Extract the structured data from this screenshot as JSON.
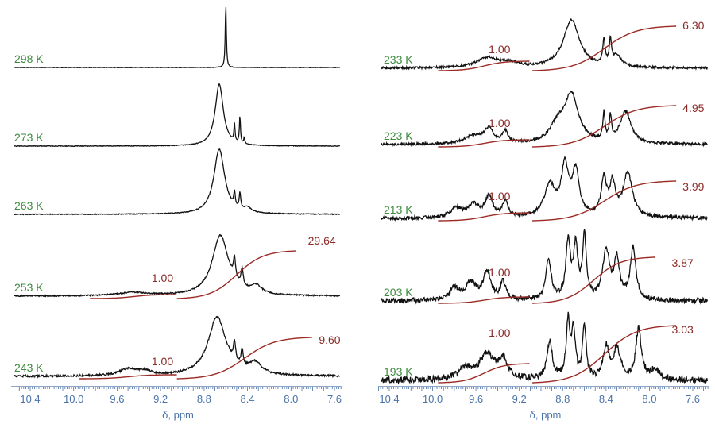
{
  "colors": {
    "spectrum": "#111111",
    "integral": "#9b2a24",
    "temp_label": "#3e8a3e",
    "integral_label": "#8b2a26",
    "axis": "#4a72a8"
  },
  "chart_data": [
    {
      "type": "line",
      "xlabel": "δ, ppm",
      "x_ticks": [
        "10.4",
        "10.0",
        "9.6",
        "9.2",
        "8.8",
        "8.4",
        "8.0",
        "7.6"
      ],
      "xlim": [
        10.5,
        7.5
      ],
      "x_reversed": true,
      "spectra": [
        {
          "temperature": "298 K",
          "integrals": []
        },
        {
          "temperature": "273 K",
          "integrals": []
        },
        {
          "temperature": "263 K",
          "integrals": []
        },
        {
          "temperature": "253 K",
          "integrals": [
            "1.00",
            "29.64"
          ]
        },
        {
          "temperature": "243 K",
          "integrals": [
            "1.00",
            "9.60"
          ]
        }
      ]
    },
    {
      "type": "line",
      "xlabel": "δ, ppm",
      "x_ticks": [
        "10.4",
        "10.0",
        "9.6",
        "9.2",
        "8.8",
        "8.4",
        "8.0",
        "7.6"
      ],
      "xlim": [
        10.5,
        7.5
      ],
      "x_reversed": true,
      "spectra": [
        {
          "temperature": "233 K",
          "integrals": [
            "1.00",
            "6.30"
          ]
        },
        {
          "temperature": "223 K",
          "integrals": [
            "1.00",
            "4.95"
          ]
        },
        {
          "temperature": "213 K",
          "integrals": [
            "1.00",
            "3.99"
          ]
        },
        {
          "temperature": "203 K",
          "integrals": [
            "1.00",
            "3.87"
          ]
        },
        {
          "temperature": "193 K",
          "integrals": [
            "1.00",
            "3.03"
          ]
        }
      ]
    }
  ]
}
